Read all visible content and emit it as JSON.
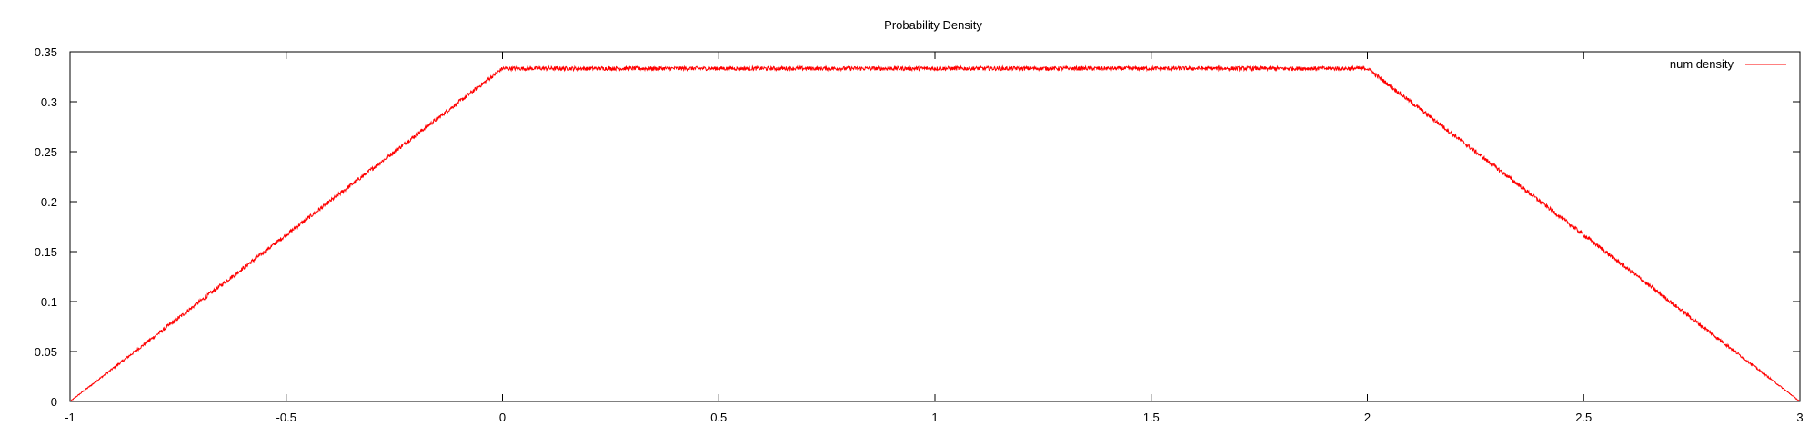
{
  "chart_data": {
    "type": "line",
    "title": "Probability Density",
    "xlabel": "",
    "ylabel": "",
    "xlim": [
      -1,
      3
    ],
    "ylim": [
      0,
      0.35
    ],
    "x_ticks": [
      -1,
      -0.5,
      0,
      0.5,
      1,
      1.5,
      2,
      2.5,
      3
    ],
    "x_tick_labels": [
      "-1",
      "-0.5",
      "0",
      "0.5",
      "1",
      "1.5",
      "2",
      "2.5",
      "3"
    ],
    "y_ticks": [
      0,
      0.05,
      0.1,
      0.15,
      0.2,
      0.25,
      0.3,
      0.35
    ],
    "y_tick_labels": [
      "0",
      "0.05",
      "0.1",
      "0.15",
      "0.2",
      "0.25",
      "0.3",
      "0.35"
    ],
    "grid": false,
    "legend_position": "top-right",
    "series": [
      {
        "name": "num density",
        "color": "#ff0000",
        "x": [
          -1,
          -0.75,
          -0.5,
          -0.25,
          0,
          0.25,
          0.5,
          0.75,
          1,
          1.25,
          1.5,
          1.75,
          2,
          2.25,
          2.5,
          2.75,
          3
        ],
        "y": [
          0,
          0.0833,
          0.1667,
          0.25,
          0.3333,
          0.3333,
          0.3333,
          0.3333,
          0.3333,
          0.3333,
          0.3333,
          0.3333,
          0.3333,
          0.25,
          0.1667,
          0.0833,
          0
        ]
      }
    ]
  }
}
